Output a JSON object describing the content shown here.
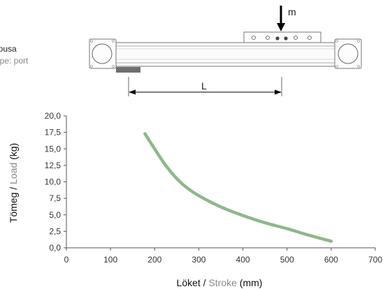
{
  "caption": {
    "hu": "Típusa",
    "en": "Type: port"
  },
  "diagram": {
    "mass_label": "m",
    "length_label": "L"
  },
  "colors": {
    "curve": "#8db88a",
    "accent_gray": "#8a8a8a",
    "axis": "#555555"
  },
  "chart_data": {
    "type": "line",
    "title": "",
    "xlabel": {
      "hu": "Löket",
      "sep": " / ",
      "en": "Stroke",
      "unit": " (mm)"
    },
    "ylabel": {
      "hu": "Tömeg",
      "sep": " / ",
      "en": "Load",
      "unit": " (kg)"
    },
    "xlim": [
      0,
      700
    ],
    "ylim": [
      0,
      20
    ],
    "x_ticks": [
      0,
      100,
      200,
      300,
      400,
      500,
      600,
      700
    ],
    "x_tick_labels": [
      "0",
      "100",
      "200",
      "300",
      "400",
      "500",
      "600",
      "700"
    ],
    "y_ticks": [
      0,
      2.5,
      5,
      7.5,
      10,
      12.5,
      15,
      17.5,
      20
    ],
    "y_tick_labels": [
      "0,0",
      "2,5",
      "5,0",
      "7,5",
      "10,0",
      "12,5",
      "15,0",
      "17,5",
      "20,0"
    ],
    "grid": false,
    "series": [
      {
        "x": [
          178,
          200,
          225,
          250,
          275,
          300,
          350,
          400,
          450,
          500,
          550,
          600
        ],
        "y": [
          17.3,
          15.0,
          12.5,
          10.5,
          9.0,
          7.9,
          6.2,
          4.9,
          3.8,
          2.9,
          1.9,
          1.0
        ]
      }
    ]
  }
}
